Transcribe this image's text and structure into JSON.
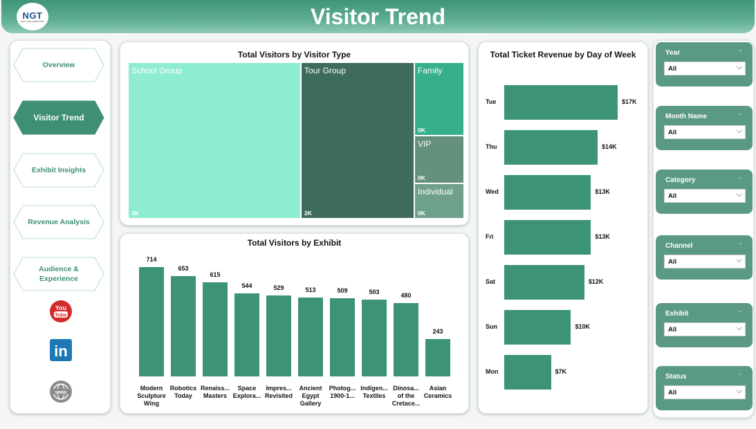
{
  "header": {
    "title": "Visitor Trend",
    "logo_text": "NGT",
    "logo_sub": "NEXT GEN TEMPLATES"
  },
  "nav": {
    "items": [
      {
        "label": "Overview",
        "active": false
      },
      {
        "label": "Visitor Trend",
        "active": true
      },
      {
        "label": "Exhibit Insights",
        "active": false
      },
      {
        "label": "Revenue Analysis",
        "active": false
      },
      {
        "label": "Audience & Experience",
        "active": false
      }
    ],
    "social": [
      "youtube-icon",
      "linkedin-icon",
      "globe-icon"
    ],
    "youtube_label": "You\nTube",
    "linkedin_label": "in",
    "web_label": "www"
  },
  "colors": {
    "accent": "#3d9377",
    "active_nav": "#3f8f73",
    "slicer_bg": "#5a9a84"
  },
  "chart_data": [
    {
      "type": "treemap",
      "title": "Total Visitors by Visitor Type",
      "cells": [
        {
          "name": "School Group",
          "label": "3K",
          "color": "#8eecd0"
        },
        {
          "name": "Tour Group",
          "label": "2K",
          "color": "#3d6b5c"
        },
        {
          "name": "Family",
          "label": "0K",
          "color": "#36b08a"
        },
        {
          "name": "VIP",
          "label": "0K",
          "color": "#64907e"
        },
        {
          "name": "Individual",
          "label": "0K",
          "color": "#6ea08c"
        }
      ]
    },
    {
      "type": "bar",
      "title": "Total Visitors by Exhibit",
      "categories": [
        "Modern Sculpture Wing",
        "Robotics Today",
        "Renaiss... Masters",
        "Space Explora...",
        "Impres... Revisited",
        "Ancient Egypt Gallery",
        "Photog... 1900-1...",
        "Indigen... Textiles",
        "Dinosa... of the Cretace...",
        "Asian Ceramics"
      ],
      "values": [
        714,
        653,
        615,
        544,
        529,
        513,
        509,
        503,
        480,
        243
      ],
      "ylim": [
        0,
        714
      ]
    },
    {
      "type": "bar",
      "orientation": "horizontal",
      "title": "Total Ticket Revenue by Day of Week",
      "categories": [
        "Tue",
        "Thu",
        "Wed",
        "Fri",
        "Sat",
        "Sun",
        "Mon"
      ],
      "values": [
        17,
        14,
        13,
        13,
        12,
        10,
        7
      ],
      "labels": [
        "$17K",
        "$14K",
        "$13K",
        "$13K",
        "$12K",
        "$10K",
        "$7K"
      ],
      "xlim": [
        0,
        17
      ]
    }
  ],
  "filters": [
    {
      "title": "Year",
      "value": "All"
    },
    {
      "title": "Month Name",
      "value": "All"
    },
    {
      "title": "Category",
      "value": "All"
    },
    {
      "title": "Channel",
      "value": "All"
    },
    {
      "title": "Exhibit",
      "value": "All"
    },
    {
      "title": "Status",
      "value": "All"
    }
  ]
}
